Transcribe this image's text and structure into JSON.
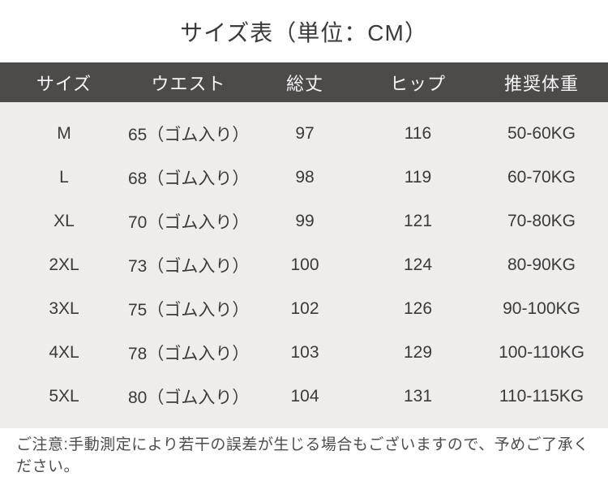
{
  "title": "サイズ表（単位：CM）",
  "note": "ご注意:手動測定により若干の誤差が生じる場合もございますので、予めご了承ください。",
  "colors": {
    "header_bg": "#4d4a4a",
    "header_text": "#f7f6f6",
    "body_bg": "#eeedec",
    "cell_text": "#3a3a3a",
    "note_text": "#4d4d4d"
  },
  "chart_data": {
    "type": "table",
    "title": "サイズ表（単位：CM）",
    "unit": "CM",
    "columns": [
      "サイズ",
      "ウエスト",
      "総丈",
      "ヒップ",
      "推奨体重"
    ],
    "rows": [
      [
        "M",
        "65（ゴム入り）",
        "97",
        "116",
        "50-60KG"
      ],
      [
        "L",
        "68（ゴム入り）",
        "98",
        "119",
        "60-70KG"
      ],
      [
        "XL",
        "70（ゴム入り）",
        "99",
        "121",
        "70-80KG"
      ],
      [
        "2XL",
        "73（ゴム入り）",
        "100",
        "124",
        "80-90KG"
      ],
      [
        "3XL",
        "75（ゴム入り）",
        "102",
        "126",
        "90-100KG"
      ],
      [
        "4XL",
        "78（ゴム入り）",
        "103",
        "129",
        "100-110KG"
      ],
      [
        "5XL",
        "80（ゴム入り）",
        "104",
        "131",
        "110-115KG"
      ]
    ],
    "note": "ご注意:手動測定により若干の誤差が生じる場合もございますので、予めご了承ください。"
  }
}
